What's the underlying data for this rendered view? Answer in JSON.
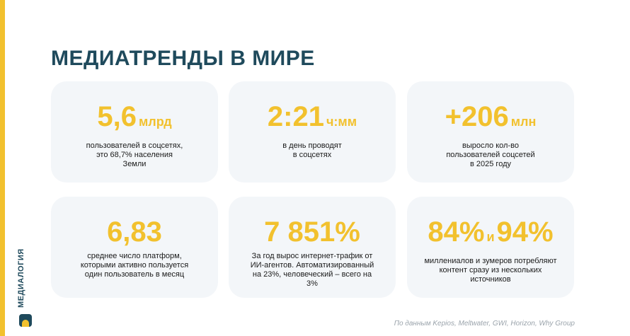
{
  "title": "МЕДИАТРЕНДЫ В МИРЕ",
  "cards": [
    {
      "value": "5,6",
      "unit": "млрд",
      "lines": [
        "пользователей в соцсетях,",
        "это 68,7%  населения",
        "Земли"
      ]
    },
    {
      "value": "2:21",
      "unit": "ч:мм",
      "lines": [
        "в день проводят",
        "в соцсетях"
      ]
    },
    {
      "value": "+206",
      "unit": "млн",
      "lines": [
        "выросло кол-во",
        "пользователей соцсетей",
        "в 2025 году"
      ]
    },
    {
      "value": "6,83",
      "lines": [
        "среднее число платформ,",
        "которыми активно пользуется",
        "один пользователь в месяц"
      ]
    },
    {
      "value": "7 851%",
      "lines": [
        "За год вырос интернет-трафик от",
        "ИИ-агентов. Автоматизированный",
        "на 23%, человеческий – всего на",
        "3%"
      ]
    },
    {
      "value": "84%",
      "joiner": "и",
      "value2": "94%",
      "lines": [
        "миллениалов и зумеров потребляют",
        "контент сразу из нескольких",
        "источников"
      ]
    }
  ],
  "source": "По данным Kepios, Meltwater, GWI, Horizon, Why Group",
  "logo": "МЕДИАЛОГИЯ"
}
